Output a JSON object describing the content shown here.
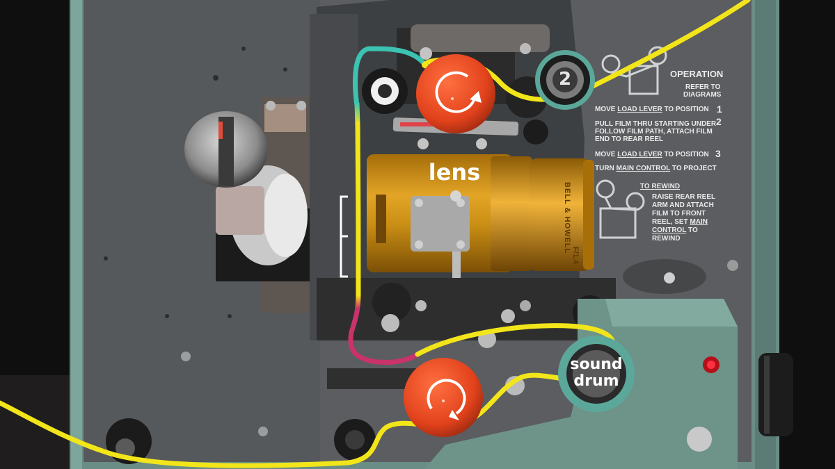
{
  "labels": {
    "lens": "lens",
    "sound_drum_line1": "sound",
    "sound_drum_line2": "drum",
    "sprocket_number": "2"
  },
  "panel": {
    "operation_title": "OPERATION",
    "refer_line1": "REFER TO",
    "refer_line2": "DIAGRAMS",
    "step1_prefix": "MOVE ",
    "step1_link": "LOAD LEVER",
    "step1_suffix": " TO POSITION",
    "step1_num": "1",
    "step2_line1": "PULL FILM THRU STARTING UNDER",
    "step2_num": "2",
    "step2_line2": "FOLLOW FILM PATH, ATTACH FILM",
    "step2_line3": "END TO REAR REEL",
    "step3_prefix": "MOVE ",
    "step3_link": "LOAD LEVER",
    "step3_suffix": " TO POSITION",
    "step3_num": "3",
    "step4_prefix": "TURN ",
    "step4_link": "MAIN CONTROL",
    "step4_suffix": " TO PROJECT",
    "rewind_title": "TO REWIND",
    "rewind_line1": "RAISE REAR REEL",
    "rewind_line2": "ARM AND ATTACH",
    "rewind_line3": "FILM TO FRONT",
    "rewind_line4_prefix": "REEL, SET ",
    "rewind_line4_link": "MAIN",
    "rewind_line5_link": "CONTROL",
    "rewind_line5_suffix": " TO",
    "rewind_line6": "REWIND"
  },
  "lens_brand": "BELL & HOWELL",
  "lens_spec": "F/1.4",
  "colors": {
    "film_path": "#f2e51a",
    "loop_upper": "#3cc3b1",
    "loop_lower": "#c8336a",
    "sprocket": "#e2421c",
    "body": "#6b8f86",
    "panel": "#55585a",
    "lens": "#c48a10"
  }
}
